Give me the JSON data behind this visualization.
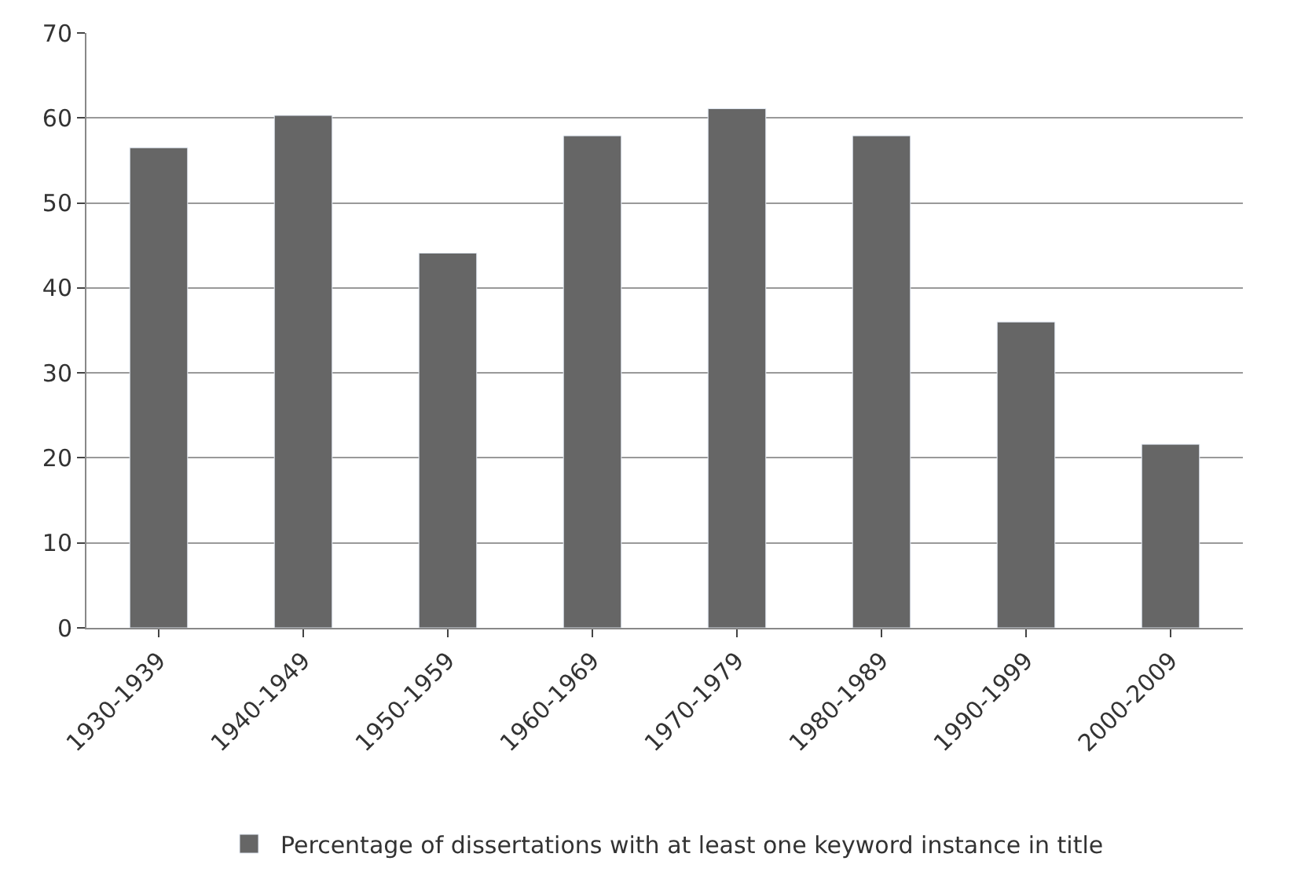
{
  "chart_data": {
    "type": "bar",
    "categories": [
      "1930-1939",
      "1940-1949",
      "1950-1959",
      "1960-1969",
      "1970-1979",
      "1980-1989",
      "1990-1999",
      "2000-2009"
    ],
    "series": [
      {
        "name": "Percentage of dissertations with at least one keyword instance in title",
        "color": "#666666",
        "values": [
          56.5,
          60.3,
          44.1,
          57.9,
          61.1,
          57.9,
          36.0,
          21.6
        ]
      }
    ],
    "ylim": [
      0,
      70
    ],
    "yticks": [
      0,
      10,
      20,
      30,
      40,
      50,
      60,
      70
    ],
    "grid": "y",
    "legend": "bottom"
  }
}
